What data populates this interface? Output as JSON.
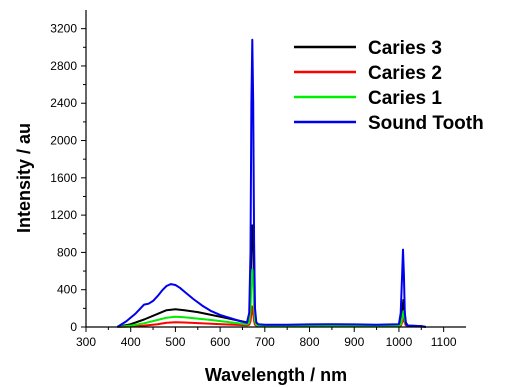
{
  "chart_data": {
    "type": "line",
    "title": "",
    "xlabel": "Wavelength / nm",
    "ylabel": "Intensity / au",
    "xlim": [
      300,
      1150
    ],
    "ylim": [
      0,
      3400
    ],
    "x_ticks": [
      300,
      400,
      500,
      600,
      700,
      800,
      900,
      1000,
      1100
    ],
    "y_ticks": [
      0,
      400,
      800,
      1200,
      1600,
      2000,
      2400,
      2800,
      3200
    ],
    "grid": false,
    "legend_position": "top-right",
    "series": [
      {
        "name": "Caries 3",
        "color": "#000000",
        "x": [
          370,
          400,
          430,
          460,
          480,
          500,
          520,
          550,
          580,
          610,
          640,
          660,
          665,
          668,
          670,
          672,
          674,
          676,
          678,
          681,
          685,
          700,
          750,
          800,
          850,
          900,
          950,
          1000,
          1005,
          1008,
          1010,
          1012,
          1015,
          1020,
          1050,
          1060
        ],
        "y": [
          0,
          30,
          80,
          140,
          180,
          190,
          180,
          160,
          130,
          100,
          70,
          50,
          80,
          300,
          900,
          1090,
          900,
          400,
          120,
          40,
          25,
          20,
          20,
          20,
          25,
          20,
          15,
          20,
          60,
          200,
          290,
          200,
          50,
          15,
          10,
          0
        ]
      },
      {
        "name": "Caries 2",
        "color": "#ff0000",
        "x": [
          370,
          400,
          430,
          460,
          480,
          500,
          520,
          550,
          580,
          610,
          640,
          660,
          665,
          668,
          670,
          672,
          674,
          676,
          678,
          681,
          685,
          700,
          750,
          800,
          850,
          900,
          950,
          1000,
          1005,
          1008,
          1010,
          1012,
          1015,
          1020,
          1050,
          1060
        ],
        "y": [
          0,
          5,
          15,
          30,
          45,
          50,
          48,
          42,
          35,
          28,
          22,
          18,
          25,
          60,
          150,
          220,
          150,
          60,
          25,
          15,
          10,
          8,
          8,
          8,
          10,
          8,
          6,
          8,
          20,
          60,
          100,
          60,
          20,
          6,
          4,
          0
        ]
      },
      {
        "name": "Caries 1",
        "color": "#00ee00",
        "x": [
          370,
          400,
          430,
          460,
          480,
          500,
          520,
          550,
          580,
          610,
          640,
          660,
          665,
          668,
          670,
          672,
          674,
          676,
          678,
          681,
          685,
          700,
          750,
          800,
          850,
          900,
          950,
          1000,
          1005,
          1008,
          1010,
          1012,
          1015,
          1020,
          1050,
          1060
        ],
        "y": [
          0,
          15,
          40,
          75,
          100,
          110,
          105,
          90,
          75,
          58,
          40,
          28,
          45,
          180,
          500,
          620,
          480,
          200,
          60,
          22,
          15,
          12,
          12,
          12,
          15,
          12,
          10,
          12,
          35,
          110,
          170,
          110,
          35,
          10,
          6,
          0
        ]
      },
      {
        "name": "Sound Tooth",
        "color": "#0000ee",
        "x": [
          370,
          390,
          410,
          430,
          440,
          450,
          460,
          470,
          480,
          490,
          500,
          510,
          520,
          540,
          560,
          580,
          600,
          620,
          640,
          660,
          665,
          668,
          670,
          672,
          674,
          676,
          678,
          681,
          685,
          700,
          750,
          800,
          850,
          900,
          950,
          1000,
          1004,
          1007,
          1009,
          1011,
          1013,
          1016,
          1020,
          1050,
          1060
        ],
        "y": [
          0,
          60,
          140,
          240,
          250,
          280,
          330,
          390,
          440,
          460,
          450,
          420,
          380,
          300,
          230,
          170,
          130,
          100,
          70,
          45,
          150,
          800,
          2400,
          3080,
          2400,
          900,
          200,
          50,
          30,
          25,
          25,
          28,
          30,
          28,
          25,
          30,
          150,
          550,
          830,
          560,
          150,
          30,
          15,
          10,
          0
        ]
      }
    ]
  }
}
